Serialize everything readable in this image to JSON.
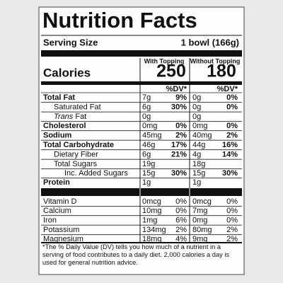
{
  "title": "Nutrition Facts",
  "serving": {
    "label": "Serving Size",
    "value": "1 bowl (166g)"
  },
  "columns": [
    "With Topping",
    "Without Topping"
  ],
  "calories": {
    "label": "Calories",
    "values": [
      "250",
      "180"
    ]
  },
  "dv_header": [
    "%DV*",
    "%DV*"
  ],
  "rows": [
    {
      "label": "Total Fat",
      "cells": [
        {
          "amount": "7g",
          "dv": "9%"
        },
        {
          "amount": "0g",
          "dv": "0%"
        }
      ]
    },
    {
      "label": "Saturated Fat",
      "cells": [
        {
          "amount": "6g",
          "dv": "30%"
        },
        {
          "amount": "0g",
          "dv": "0%"
        }
      ]
    },
    {
      "label_em": "Trans",
      "label": "Fat",
      "cells": [
        {
          "amount": "0g"
        },
        {
          "amount": "0g"
        }
      ]
    },
    {
      "label": "Cholesterol",
      "cells": [
        {
          "amount": "0mg",
          "dv": "0%"
        },
        {
          "amount": "0mg",
          "dv": "0%"
        }
      ]
    },
    {
      "label": "Sodium",
      "cells": [
        {
          "amount": "45mg",
          "dv": "2%"
        },
        {
          "amount": "40mg",
          "dv": "2%"
        }
      ]
    },
    {
      "label": "Total Carbohydrate",
      "cells": [
        {
          "amount": "46g",
          "dv": "17%"
        },
        {
          "amount": "44g",
          "dv": "16%"
        }
      ]
    },
    {
      "label": "Dietary Fiber",
      "cells": [
        {
          "amount": "6g",
          "dv": "21%"
        },
        {
          "amount": "4g",
          "dv": "14%"
        }
      ]
    },
    {
      "label": "Total Sugars",
      "cells": [
        {
          "amount": "19g"
        },
        {
          "amount": "18g"
        }
      ]
    },
    {
      "label": "Inc. Added Sugars",
      "cells": [
        {
          "amount": "15g",
          "dv": "30%"
        },
        {
          "amount": "15g",
          "dv": "30%"
        }
      ]
    },
    {
      "label": "Protein",
      "cells": [
        {
          "amount": "1g"
        },
        {
          "amount": "1g"
        }
      ]
    }
  ],
  "micros": [
    {
      "label": "Vitamin D",
      "cells": [
        {
          "amount": "0mcg",
          "dv": "0%"
        },
        {
          "amount": "0mcg",
          "dv": "0%"
        }
      ]
    },
    {
      "label": "Calcium",
      "cells": [
        {
          "amount": "10mg",
          "dv": "0%"
        },
        {
          "amount": "7mg",
          "dv": "0%"
        }
      ]
    },
    {
      "label": "Iron",
      "cells": [
        {
          "amount": "1mg",
          "dv": "6%"
        },
        {
          "amount": "0mg",
          "dv": "0%"
        }
      ]
    },
    {
      "label": "Potassium",
      "cells": [
        {
          "amount": "134mg",
          "dv": "2%"
        },
        {
          "amount": "80mg",
          "dv": "2%"
        }
      ]
    },
    {
      "label": "Magnesium",
      "cells": [
        {
          "amount": "18mg",
          "dv": "4%"
        },
        {
          "amount": "9mg",
          "dv": "2%"
        }
      ]
    }
  ],
  "footnote": "*The % Daily Value (DV) tells you how much of a nutrient in a serving of food contributes to a daily diet. 2,000 calories a day is used for general nutrition advice."
}
